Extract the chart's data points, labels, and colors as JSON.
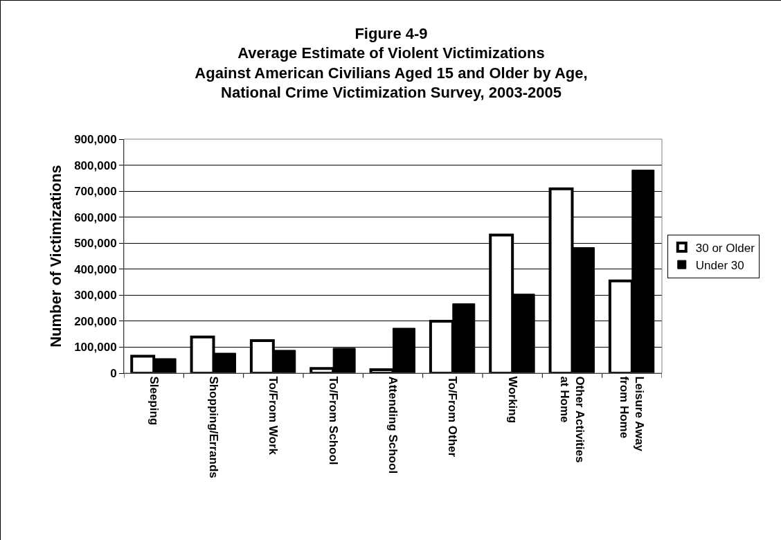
{
  "chart_data": {
    "type": "bar",
    "title": "Figure 4-9\nAverage Estimate of Violent Victimizations\nAgainst American Civilians Aged 15 and Older by Age,\nNational Crime Victimization Survey, 2003-2005",
    "ylabel": "Number of Victimizations",
    "categories": [
      "Sleeping",
      "Shopping/Errands",
      "To/From Work",
      "To/From School",
      "Attending School",
      "To/From Other",
      "Working",
      "Other Activities at Home",
      "Leisure Away from Home"
    ],
    "series": [
      {
        "name": "30 or Older",
        "color": "#ffffff",
        "values": [
          65000,
          139000,
          125000,
          18000,
          13000,
          200000,
          531000,
          709000,
          355000
        ]
      },
      {
        "name": "Under 30",
        "color": "#000000",
        "values": [
          56000,
          77000,
          88000,
          96000,
          173000,
          267000,
          304000,
          483000,
          781000
        ]
      }
    ],
    "ylim": [
      0,
      900000
    ],
    "yticks": [
      0,
      {
        "value": 100000,
        "label": "100,000"
      },
      {
        "value": 200000,
        "label": "200,000"
      },
      {
        "value": 300000,
        "label": "300,000"
      },
      {
        "value": 400000,
        "label": "400,000"
      },
      {
        "value": 500000,
        "label": "500,000"
      },
      {
        "value": 600000,
        "label": "600,000"
      },
      {
        "value": 700000,
        "label": "700,000"
      },
      {
        "value": 800000,
        "label": "800,000"
      },
      {
        "value": 900000,
        "label": "900,000"
      }
    ],
    "grid": "y",
    "legend": "right"
  }
}
